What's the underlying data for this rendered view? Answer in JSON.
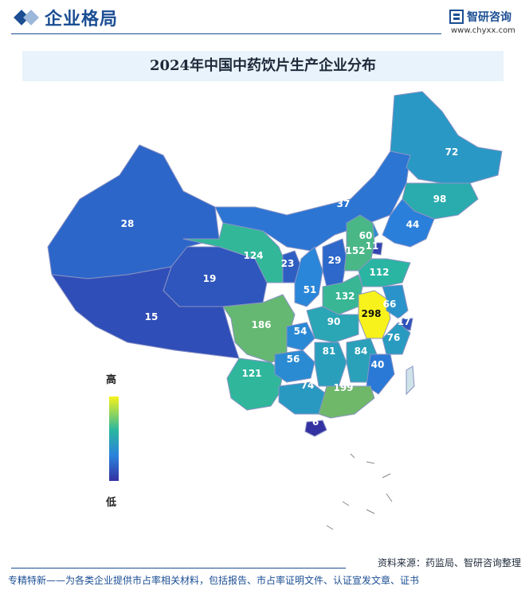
{
  "header": {
    "title": "企业格局",
    "logo_name": "智研咨询",
    "logo_url": "www.chyxx.com"
  },
  "chart_title": "2024年中国中药饮片生产企业分布",
  "legend": {
    "high": "高",
    "low": "低"
  },
  "footer": {
    "source": "资料来源：药监局、智研咨询整理",
    "tagline": "专精特新——为各类企业提供市占率相关材料，包括报告、市占率证明文件、认证宣发文章、证书"
  },
  "colors": {
    "brand": "#1b4e93",
    "scale": [
      "#3432a2",
      "#2a82dd",
      "#2ab7a0",
      "#6fb86a",
      "#f7f21b"
    ]
  },
  "chart_data": {
    "type": "map",
    "title": "2024年中国中药饮片生产企业分布",
    "values": [
      {
        "label": "28",
        "value": 28
      },
      {
        "label": "19",
        "value": 19
      },
      {
        "label": "15",
        "value": 15
      },
      {
        "label": "124",
        "value": 124
      },
      {
        "label": "186",
        "value": 186
      },
      {
        "label": "121",
        "value": 121
      },
      {
        "label": "23",
        "value": 23
      },
      {
        "label": "51",
        "value": 51
      },
      {
        "label": "29",
        "value": 29
      },
      {
        "label": "60",
        "value": 60
      },
      {
        "label": "11",
        "value": 11
      },
      {
        "label": "152",
        "value": 152
      },
      {
        "label": "112",
        "value": 112
      },
      {
        "label": "132",
        "value": 132
      },
      {
        "label": "298",
        "value": 298
      },
      {
        "label": "66",
        "value": 66
      },
      {
        "label": "17",
        "value": 17
      },
      {
        "label": "76",
        "value": 76
      },
      {
        "label": "90",
        "value": 90
      },
      {
        "label": "54",
        "value": 54
      },
      {
        "label": "81",
        "value": 81
      },
      {
        "label": "84",
        "value": 84
      },
      {
        "label": "56",
        "value": 56
      },
      {
        "label": "40",
        "value": 40
      },
      {
        "label": "74",
        "value": 74
      },
      {
        "label": "199",
        "value": 199
      },
      {
        "label": "6",
        "value": 6
      },
      {
        "label": "37",
        "value": 37
      },
      {
        "label": "44",
        "value": 44
      },
      {
        "label": "72",
        "value": 72
      },
      {
        "label": "98",
        "value": 98
      }
    ],
    "scale_range": [
      6,
      298
    ]
  }
}
